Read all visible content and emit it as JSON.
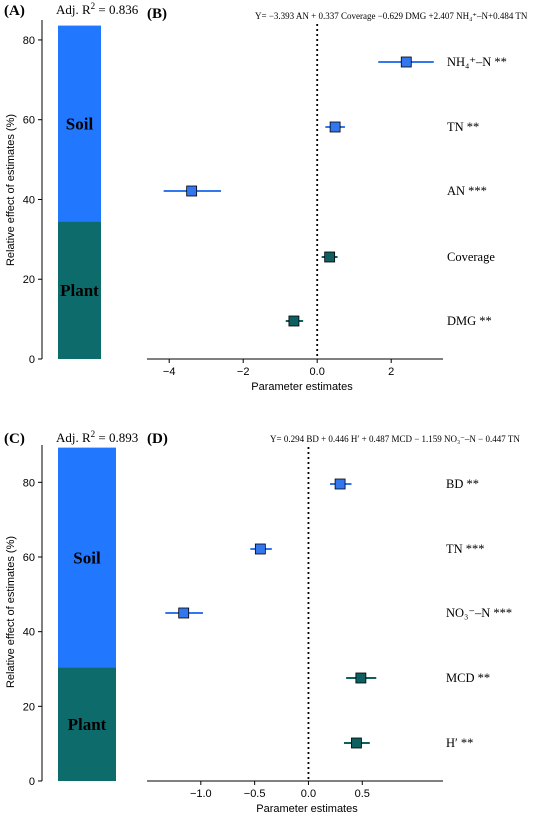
{
  "colors": {
    "soil": "#2277ff",
    "plant": "#0e6b6b",
    "soil_marker": "#3377ee",
    "plant_marker": "#0e5f60",
    "soil_line": "#3377ee",
    "plant_line": "#0e5f60"
  },
  "chart_data": [
    {
      "type": "bar",
      "panel": "(A)",
      "r2_label": "Adj. R",
      "r2_sup": "2",
      "r2_value": " = 0.836",
      "ylabel": "Relative effect of estimates (%)",
      "ylim": [
        0,
        85
      ],
      "yticks": [
        0,
        20,
        40,
        60,
        80
      ],
      "stack": [
        {
          "name": "Plant",
          "start": 0,
          "end": 34.5
        },
        {
          "name": "Soil",
          "start": 34.5,
          "end": 83.6
        }
      ]
    },
    {
      "type": "scatter",
      "panel": "(B)",
      "equation": "Y= −3.393 AN + 0.337 Coverage −0.629 DMG +2.407 NH₄⁺–N+0.484 TN",
      "xlabel": "Parameter estimates",
      "xlim": [
        -4.6,
        3.4
      ],
      "xticks": [
        -4,
        -2,
        0,
        2
      ],
      "ref_line_x": 0,
      "points": [
        {
          "label": "NH₄⁺–N **",
          "group": "soil",
          "estimate": 2.407,
          "ci": [
            1.65,
            3.15
          ]
        },
        {
          "label": "TN **",
          "group": "soil",
          "estimate": 0.484,
          "ci": [
            0.22,
            0.75
          ]
        },
        {
          "label": "AN ***",
          "group": "soil",
          "estimate": -3.393,
          "ci": [
            -4.15,
            -2.6
          ]
        },
        {
          "label": "Coverage",
          "group": "plant",
          "estimate": 0.337,
          "ci": [
            0.12,
            0.55
          ]
        },
        {
          "label": "DMG **",
          "group": "plant",
          "estimate": -0.629,
          "ci": [
            -0.85,
            -0.38
          ]
        }
      ]
    },
    {
      "type": "bar",
      "panel": "(C)",
      "r2_label": "Adj. R",
      "r2_sup": "2",
      "r2_value": " = 0.893",
      "ylabel": "Relative effect of estimates (%)",
      "ylim": [
        0,
        90
      ],
      "yticks": [
        0,
        20,
        40,
        60,
        80
      ],
      "stack": [
        {
          "name": "Plant",
          "start": 0,
          "end": 30.5
        },
        {
          "name": "Soil",
          "start": 30.5,
          "end": 89.3
        }
      ]
    },
    {
      "type": "scatter",
      "panel": "(D)",
      "equation": "Y= 0.294 BD + 0.446 H′ + 0.487 MCD − 1.159 NO₃⁻–N − 0.447 TN",
      "xlabel": "Parameter estimates",
      "xlim": [
        -1.5,
        1.25
      ],
      "xticks": [
        -1.0,
        -0.5,
        0.0,
        0.5
      ],
      "ref_line_x": 0,
      "points": [
        {
          "label": "BD **",
          "group": "soil",
          "estimate": 0.294,
          "ci": [
            0.2,
            0.4
          ]
        },
        {
          "label": "TN ***",
          "group": "soil",
          "estimate": -0.447,
          "ci": [
            -0.54,
            -0.34
          ]
        },
        {
          "label": "NO₃⁻–N ***",
          "group": "soil",
          "estimate": -1.159,
          "ci": [
            -1.33,
            -0.98
          ]
        },
        {
          "label": "MCD **",
          "group": "plant",
          "estimate": 0.487,
          "ci": [
            0.35,
            0.63
          ]
        },
        {
          "label": "H′ **",
          "group": "plant",
          "estimate": 0.446,
          "ci": [
            0.33,
            0.57
          ]
        }
      ]
    }
  ]
}
